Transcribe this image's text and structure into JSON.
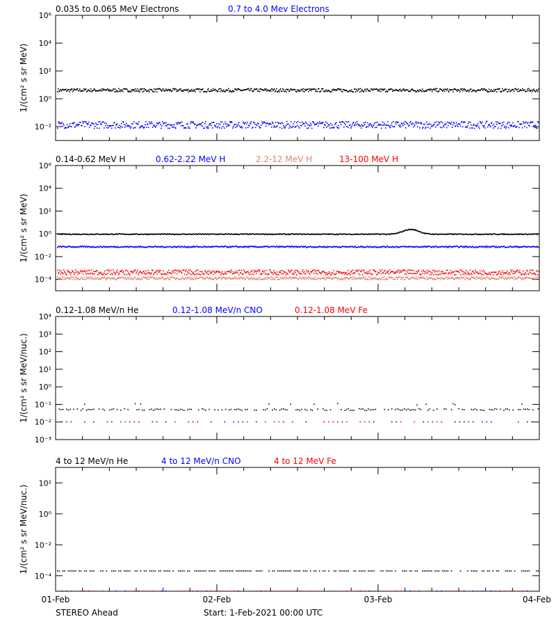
{
  "colors": {
    "black": "#000000",
    "blue": "#0000ff",
    "red": "#ff0000",
    "salmon": "#e0866e"
  },
  "footer": {
    "spacecraft": "STEREO Ahead",
    "start": "Start:  1-Feb-2021 00:00 UTC"
  },
  "chart_data": [
    {
      "type": "scatter",
      "scale": "log",
      "ylabel": "1/(cm² s sr MeV)",
      "ylim": [
        0.001,
        1000000
      ],
      "yticks": [
        {
          "v": 0.01,
          "t": "10⁻²"
        },
        {
          "v": 1,
          "t": "10⁰"
        },
        {
          "v": 100,
          "t": "10²"
        },
        {
          "v": 10000,
          "t": "10⁴"
        },
        {
          "v": 1000000,
          "t": "10⁶"
        }
      ],
      "x_range_days": [
        0,
        3
      ],
      "series": [
        {
          "name": "0.035 to 0.065 MeV Electrons",
          "color": "#000000",
          "level": 4,
          "spread": 0.12
        },
        {
          "name": "0.7 to 4.0 Mev Electrons",
          "color": "#0000ff",
          "level": 0.013,
          "spread": 0.25
        }
      ]
    },
    {
      "type": "scatter",
      "scale": "log",
      "ylabel": "1/(cm² s sr MeV)",
      "ylim": [
        1e-05,
        1000000
      ],
      "yticks": [
        {
          "v": 0.0001,
          "t": "10⁻⁴"
        },
        {
          "v": 0.01,
          "t": "10⁻²"
        },
        {
          "v": 1,
          "t": "10⁰"
        },
        {
          "v": 100,
          "t": "10²"
        },
        {
          "v": 10000,
          "t": "10⁴"
        },
        {
          "v": 1000000,
          "t": "10⁶"
        }
      ],
      "x_range_days": [
        0,
        3
      ],
      "series": [
        {
          "name": "0.14-0.62 MeV H",
          "color": "#000000",
          "level": 0.9,
          "spread": 0.04
        },
        {
          "name": "0.62-2.22 MeV H",
          "color": "#0000ff",
          "level": 0.07,
          "spread": 0.06
        },
        {
          "name": "2.2-12 MeV H",
          "color": "#e0866e",
          "level": 0.00012,
          "spread": 0.12
        },
        {
          "name": "13-100 MeV H",
          "color": "#ff0000",
          "level": 0.0004,
          "spread": 0.22
        }
      ]
    },
    {
      "type": "scatter",
      "scale": "log",
      "ylabel": "1/(cm² s sr MeV/nuc.)",
      "ylim": [
        0.001,
        10000
      ],
      "yticks": [
        {
          "v": 0.001,
          "t": "10⁻³"
        },
        {
          "v": 0.01,
          "t": "10⁻²"
        },
        {
          "v": 0.1,
          "t": "10⁻¹"
        },
        {
          "v": 1,
          "t": "10⁰"
        },
        {
          "v": 10,
          "t": "10¹"
        },
        {
          "v": 100,
          "t": "10²"
        },
        {
          "v": 1000,
          "t": "10³"
        },
        {
          "v": 10000,
          "t": "10⁴"
        }
      ],
      "x_range_days": [
        0,
        3
      ],
      "series": [
        {
          "name": "0.12-1.08 MeV/n He",
          "color": "#000000",
          "level": 0.05,
          "spread": 0.05
        },
        {
          "name": "0.12-1.08 MeV/n CNO",
          "color": "#0000ff",
          "level": 0.01,
          "spread": 0.0
        },
        {
          "name": "0.12-1.08 MeV Fe",
          "color": "#ff0000",
          "level": 0.01,
          "spread": 0.0
        }
      ]
    },
    {
      "type": "scatter",
      "scale": "log",
      "ylabel": "1/(cm² s sr MeV/nuc.)",
      "ylim": [
        1e-05,
        1000
      ],
      "yticks": [
        {
          "v": 0.0001,
          "t": "10⁻⁴"
        },
        {
          "v": 0.01,
          "t": "10⁻²"
        },
        {
          "v": 1,
          "t": "10⁰"
        },
        {
          "v": 100,
          "t": "10²"
        }
      ],
      "x_range_days": [
        0,
        3
      ],
      "xticks": [
        "01-Feb",
        "02-Feb",
        "03-Feb",
        "04-Feb"
      ],
      "series": [
        {
          "name": "4 to 12 MeV/n He",
          "color": "#000000",
          "level": 0.0002,
          "spread": 0.0
        },
        {
          "name": "4 to 12 MeV/n CNO",
          "color": "#0000ff",
          "level": 1e-05,
          "spread": 0.0
        },
        {
          "name": "4 to 12 MeV Fe",
          "color": "#ff0000",
          "level": 1e-05,
          "spread": 0.0
        }
      ]
    }
  ]
}
